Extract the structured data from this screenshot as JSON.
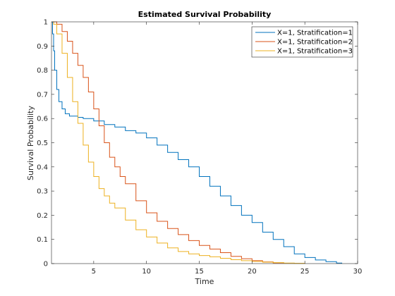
{
  "chart_data": {
    "type": "line",
    "step": true,
    "title": "Estimated Survival Probability",
    "xlabel": "Time",
    "ylabel": "Survival Probability",
    "xlim": [
      1,
      30
    ],
    "ylim": [
      0,
      1
    ],
    "xticks": [
      5,
      10,
      15,
      20,
      25,
      30
    ],
    "yticks": [
      0,
      0.1,
      0.2,
      0.3,
      0.4,
      0.5,
      0.6,
      0.7,
      0.8,
      0.9,
      1
    ],
    "grid": false,
    "legend": "top-right",
    "series": [
      {
        "name": "X=1, Stratification=1",
        "color": "#0072BD",
        "x": [
          1.0,
          1.1,
          1.2,
          1.3,
          1.5,
          1.7,
          2.0,
          2.3,
          2.7,
          3.0,
          3.5,
          4.0,
          5.0,
          6.0,
          7.0,
          8.0,
          9.0,
          10.0,
          11.0,
          12.0,
          13.0,
          14.0,
          15.0,
          16.0,
          17.0,
          18.0,
          19.0,
          20.0,
          21.0,
          22.0,
          23.0,
          24.0,
          25.0,
          26.0,
          27.0,
          28.0,
          28.5
        ],
        "values": [
          1.0,
          0.95,
          0.88,
          0.8,
          0.72,
          0.67,
          0.64,
          0.62,
          0.61,
          0.61,
          0.605,
          0.6,
          0.59,
          0.575,
          0.565,
          0.55,
          0.54,
          0.52,
          0.49,
          0.46,
          0.43,
          0.4,
          0.36,
          0.32,
          0.28,
          0.24,
          0.2,
          0.17,
          0.13,
          0.1,
          0.07,
          0.04,
          0.025,
          0.015,
          0.008,
          0.002,
          0.0
        ]
      },
      {
        "name": "X=1, Stratification=2",
        "color": "#D95319",
        "x": [
          1.0,
          1.2,
          1.5,
          2.0,
          2.5,
          3.0,
          3.5,
          4.0,
          4.5,
          5.0,
          5.5,
          6.0,
          6.5,
          7.0,
          7.5,
          8.0,
          9.0,
          10.0,
          11.0,
          12.0,
          13.0,
          14.0,
          15.0,
          16.0,
          17.0,
          18.0,
          19.0,
          20.0,
          21.0,
          22.0,
          23.0
        ],
        "values": [
          1.0,
          1.0,
          0.99,
          0.96,
          0.92,
          0.87,
          0.82,
          0.77,
          0.71,
          0.64,
          0.57,
          0.5,
          0.44,
          0.4,
          0.36,
          0.33,
          0.26,
          0.21,
          0.175,
          0.145,
          0.12,
          0.095,
          0.075,
          0.06,
          0.045,
          0.03,
          0.02,
          0.012,
          0.007,
          0.003,
          0.0
        ]
      },
      {
        "name": "X=1, Stratification=3",
        "color": "#EDB120",
        "x": [
          1.0,
          1.2,
          1.5,
          2.0,
          2.5,
          3.0,
          3.5,
          4.0,
          4.5,
          5.0,
          5.5,
          6.0,
          6.5,
          7.0,
          8.0,
          9.0,
          10.0,
          11.0,
          12.0,
          13.0,
          14.0,
          15.0,
          16.0,
          17.0,
          18.0,
          19.0,
          20.0,
          21.0,
          22.0,
          23.0,
          24.0,
          25.0
        ],
        "values": [
          1.0,
          0.99,
          0.95,
          0.87,
          0.77,
          0.67,
          0.58,
          0.49,
          0.42,
          0.36,
          0.31,
          0.28,
          0.25,
          0.23,
          0.18,
          0.14,
          0.11,
          0.085,
          0.065,
          0.05,
          0.04,
          0.033,
          0.028,
          0.022,
          0.016,
          0.012,
          0.009,
          0.006,
          0.004,
          0.002,
          0.001,
          0.0
        ]
      }
    ]
  }
}
